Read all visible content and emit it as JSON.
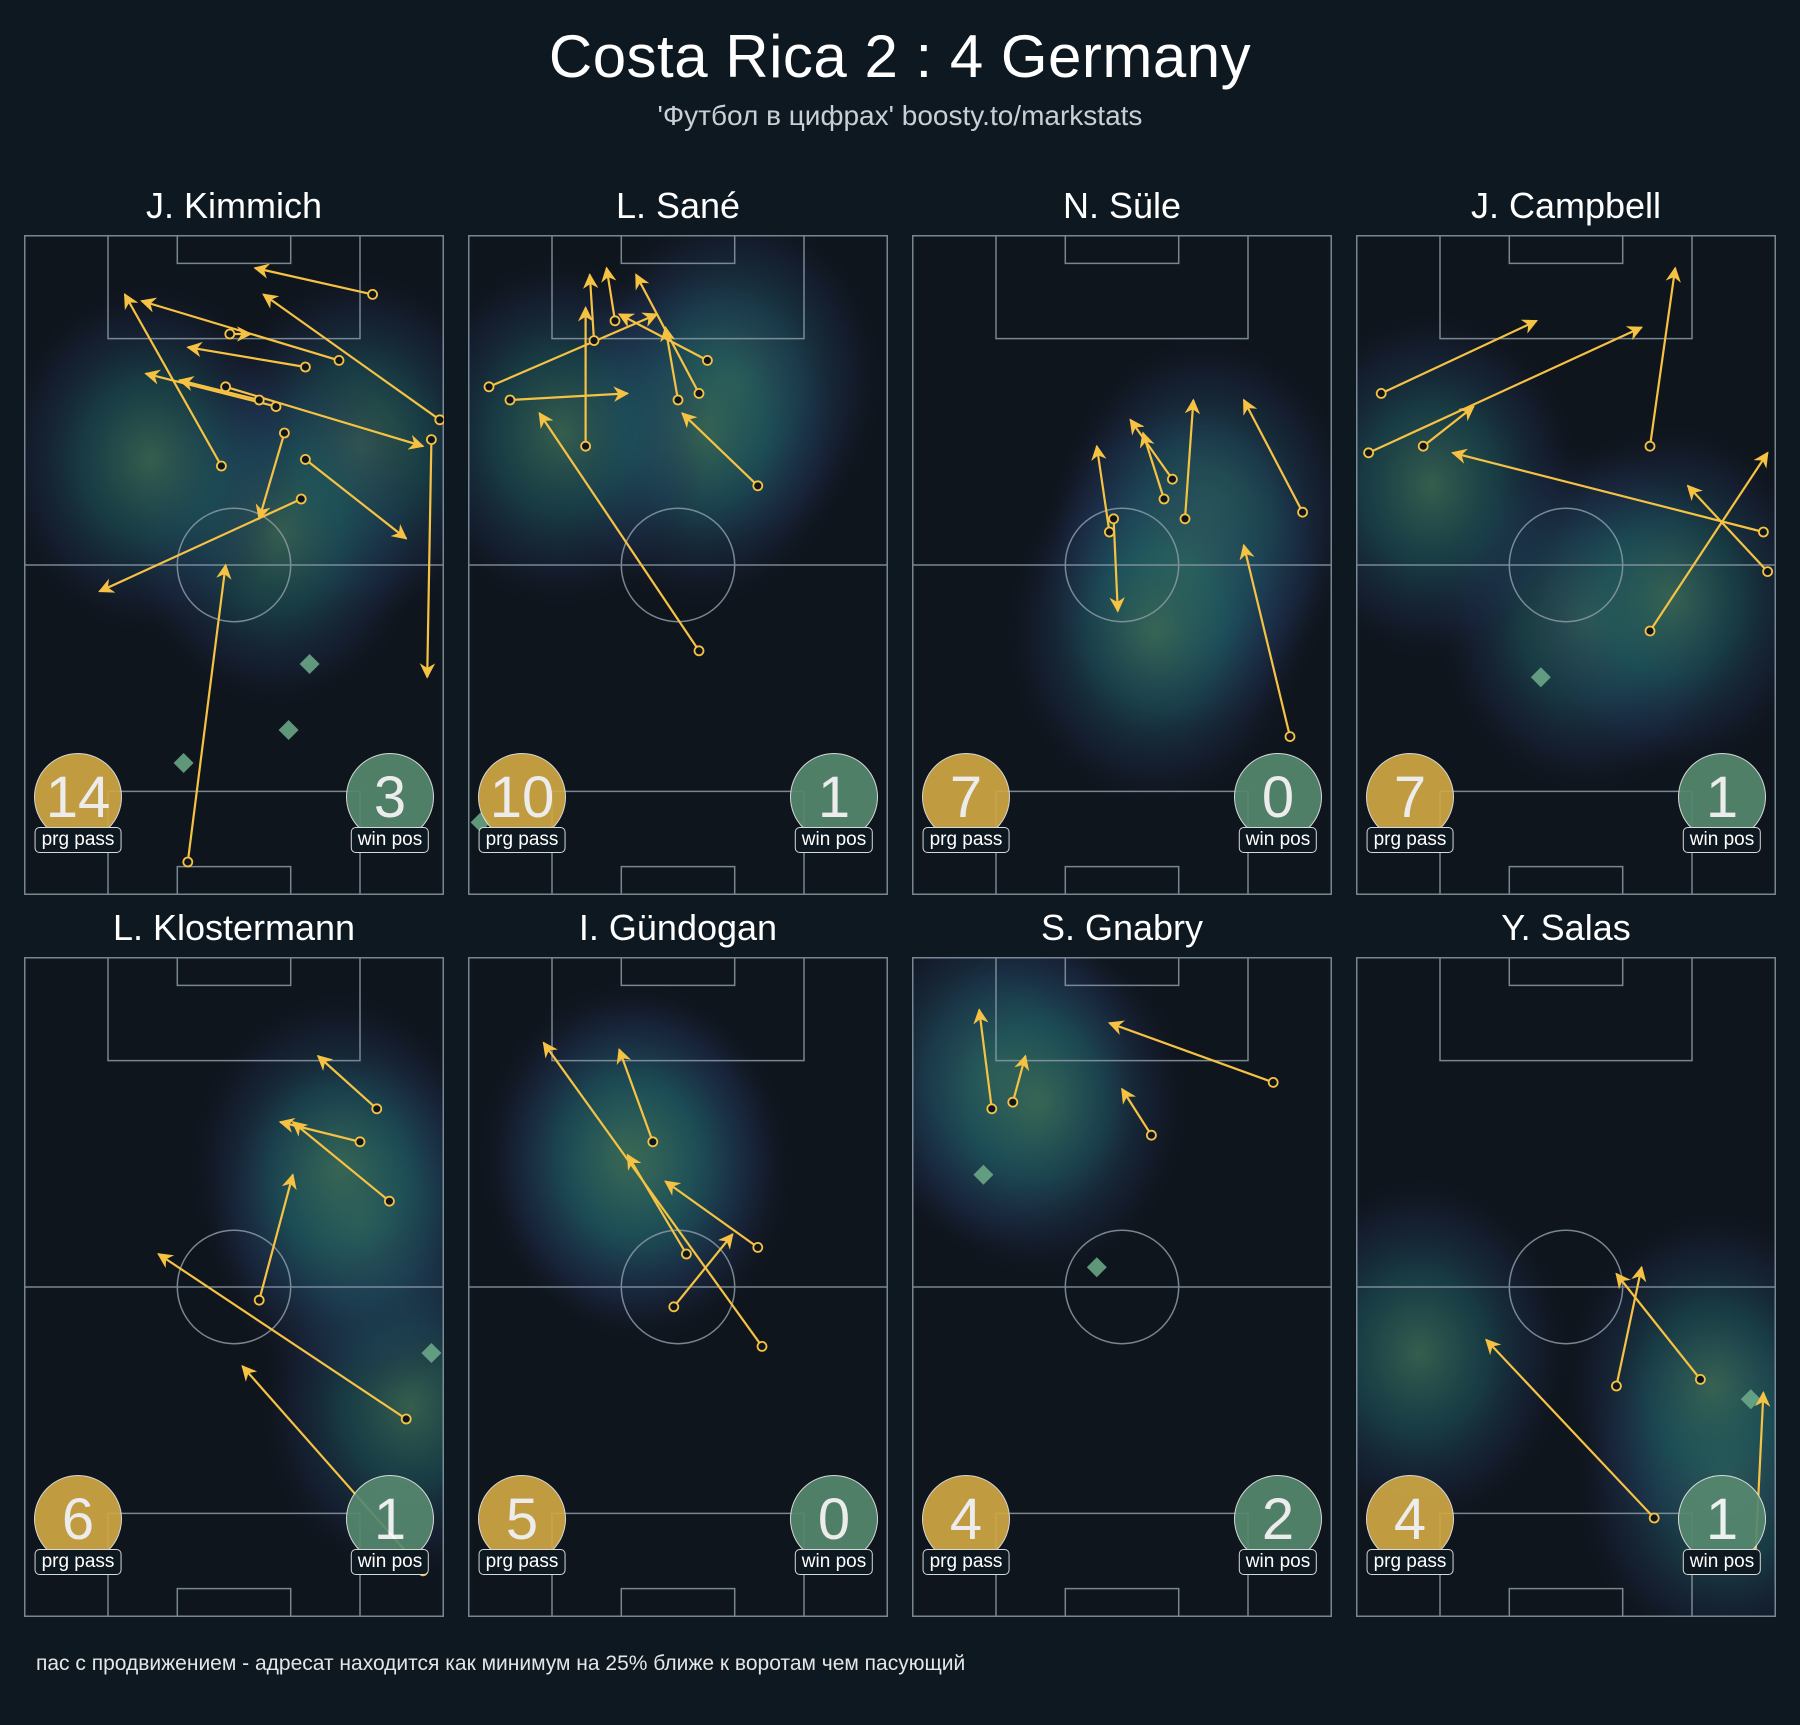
{
  "header": {
    "title": "Costa Rica 2 : 4 Germany",
    "subtitle": "'Футбол в цифрах' boosty.to/markstats"
  },
  "footnote": "пас с продвижением - адресат находится как минимум на 25% ближе к воротам чем пасующий",
  "colors": {
    "background": "#0e1820",
    "arrow": "#f6c243",
    "prg_badge": "#cfa744",
    "win_badge": "#56886f",
    "line": "#8a9aa6"
  },
  "chart_data": [
    {
      "type": "scatter",
      "title": "J. Kimmich",
      "prg_pass": 14,
      "prg_pass_label": "prg pass",
      "win_pos": 3,
      "win_pos_label": "win pos",
      "heat": [
        [
          80,
          68
        ],
        [
          60,
          55
        ],
        [
          30,
          66
        ]
      ],
      "win_positions": [
        [
          68,
          35
        ],
        [
          63,
          25
        ],
        [
          38,
          20
        ]
      ],
      "passes": [
        [
          83,
          91,
          55,
          95
        ],
        [
          99,
          72,
          57,
          91
        ],
        [
          75,
          81,
          28,
          90
        ],
        [
          60,
          74,
          29,
          79
        ],
        [
          67,
          66,
          91,
          54
        ],
        [
          48,
          77,
          95,
          68
        ],
        [
          67,
          80,
          39,
          83
        ],
        [
          47,
          65,
          24,
          91
        ],
        [
          56,
          75,
          37,
          78
        ],
        [
          49,
          85,
          54,
          85
        ],
        [
          62,
          70,
          56,
          57
        ],
        [
          97,
          69,
          96,
          33
        ],
        [
          39,
          5,
          48,
          50
        ],
        [
          66,
          60,
          18,
          46
        ]
      ]
    },
    {
      "type": "scatter",
      "title": "L. Sané",
      "prg_pass": 10,
      "prg_pass_label": "prg pass",
      "win_pos": 1,
      "win_pos_label": "win pos",
      "heat": [
        [
          63,
          78
        ],
        [
          55,
          70
        ],
        [
          22,
          70
        ]
      ],
      "win_positions": [
        [
          3,
          11
        ]
      ],
      "passes": [
        [
          55,
          76,
          40,
          94
        ],
        [
          57,
          81,
          36,
          88
        ],
        [
          35,
          87,
          33,
          95
        ],
        [
          5,
          77,
          45,
          88
        ],
        [
          10,
          75,
          38,
          76
        ],
        [
          30,
          84,
          29,
          94
        ],
        [
          50,
          75,
          47,
          86
        ],
        [
          69,
          62,
          51,
          73
        ],
        [
          28,
          68,
          28,
          89
        ],
        [
          55,
          37,
          17,
          73
        ]
      ]
    },
    {
      "type": "scatter",
      "title": "N. Süle",
      "prg_pass": 7,
      "prg_pass_label": "prg pass",
      "win_pos": 0,
      "win_pos_label": "win pos",
      "heat": [
        [
          70,
          58
        ],
        [
          65,
          50
        ],
        [
          58,
          40
        ]
      ],
      "win_positions": [],
      "passes": [
        [
          62,
          63,
          52,
          72
        ],
        [
          60,
          60,
          55,
          70
        ],
        [
          93,
          58,
          79,
          75
        ],
        [
          90,
          24,
          79,
          53
        ],
        [
          65,
          57,
          67,
          75
        ],
        [
          48,
          57,
          49,
          43
        ],
        [
          47,
          55,
          44,
          68
        ]
      ]
    },
    {
      "type": "scatter",
      "title": "J. Campbell",
      "prg_pass": 7,
      "prg_pass_label": "prg pass",
      "win_pos": 1,
      "win_pos_label": "win pos",
      "heat": [
        [
          55,
          42
        ],
        [
          18,
          62
        ],
        [
          75,
          45
        ]
      ],
      "win_positions": [
        [
          44,
          33
        ]
      ],
      "passes": [
        [
          6,
          76,
          43,
          87
        ],
        [
          3,
          67,
          68,
          86
        ],
        [
          70,
          68,
          76,
          95
        ],
        [
          16,
          68,
          28,
          74
        ],
        [
          97,
          55,
          23,
          67
        ],
        [
          70,
          40,
          98,
          67
        ],
        [
          98,
          49,
          79,
          62
        ]
      ]
    },
    {
      "type": "scatter",
      "title": "L. Klostermann",
      "prg_pass": 6,
      "prg_pass_label": "prg pass",
      "win_pos": 1,
      "win_pos_label": "win pos",
      "heat": [
        [
          92,
          32
        ],
        [
          80,
          60
        ],
        [
          75,
          68
        ]
      ],
      "win_positions": [
        [
          97,
          40
        ]
      ],
      "passes": [
        [
          84,
          77,
          70,
          85
        ],
        [
          80,
          72,
          61,
          75
        ],
        [
          87,
          63,
          64,
          75
        ],
        [
          56,
          48,
          64,
          67
        ],
        [
          91,
          30,
          32,
          55
        ],
        [
          95,
          7,
          52,
          38
        ]
      ]
    },
    {
      "type": "scatter",
      "title": "I. Gündogan",
      "prg_pass": 5,
      "prg_pass_label": "prg pass",
      "win_pos": 0,
      "win_pos_label": "win pos",
      "heat": [
        [
          42,
          68
        ],
        [
          38,
          70
        ]
      ],
      "win_positions": [],
      "passes": [
        [
          44,
          72,
          36,
          86
        ],
        [
          70,
          41,
          18,
          87
        ],
        [
          49,
          47,
          63,
          58
        ],
        [
          69,
          56,
          47,
          66
        ],
        [
          52,
          55,
          38,
          70
        ]
      ]
    },
    {
      "type": "scatter",
      "title": "S. Gnabry",
      "prg_pass": 4,
      "prg_pass_label": "prg pass",
      "win_pos": 2,
      "win_pos_label": "win pos",
      "heat": [
        [
          20,
          82
        ],
        [
          30,
          78
        ]
      ],
      "win_positions": [
        [
          17,
          67
        ],
        [
          44,
          53
        ]
      ],
      "passes": [
        [
          86,
          81,
          47,
          90
        ],
        [
          57,
          73,
          50,
          80
        ],
        [
          19,
          77,
          16,
          92
        ],
        [
          24,
          78,
          27,
          85
        ]
      ]
    },
    {
      "type": "scatter",
      "title": "Y. Salas",
      "prg_pass": 4,
      "prg_pass_label": "prg pass",
      "win_pos": 1,
      "win_pos_label": "win pos",
      "heat": [
        [
          88,
          20
        ],
        [
          85,
          35
        ],
        [
          15,
          40
        ]
      ],
      "win_positions": [
        [
          94,
          33
        ]
      ],
      "passes": [
        [
          71,
          15,
          31,
          42
        ],
        [
          82,
          36,
          62,
          52
        ],
        [
          62,
          35,
          68,
          53
        ],
        [
          95,
          8,
          97,
          34
        ]
      ]
    }
  ]
}
